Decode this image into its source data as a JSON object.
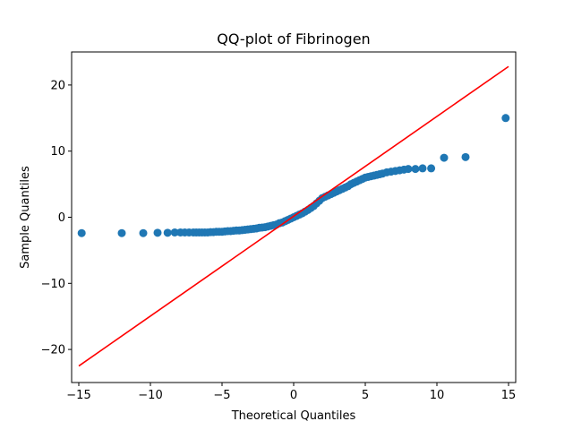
{
  "chart_data": {
    "type": "scatter",
    "title": "QQ-plot of Fibrinogen",
    "xlabel": "Theoretical Quantiles",
    "ylabel": "Sample Quantiles",
    "xlim": [
      -15.5,
      15.5
    ],
    "ylim": [
      -25,
      25
    ],
    "xticks": [
      -15,
      -10,
      -5,
      0,
      5,
      10,
      15
    ],
    "yticks": [
      -20,
      -10,
      0,
      10,
      20
    ],
    "grid": false,
    "colors": {
      "points": "#1f77b4",
      "line": "#ff0000"
    },
    "reference_line": {
      "x": [
        -15,
        15
      ],
      "y": [
        -22.5,
        22.8
      ]
    },
    "series": [
      {
        "values": [
          [
            -14.8,
            -2.4
          ],
          [
            -12.0,
            -2.4
          ],
          [
            -10.5,
            -2.4
          ],
          [
            -9.5,
            -2.35
          ],
          [
            -8.8,
            -2.35
          ],
          [
            -8.3,
            -2.3
          ],
          [
            -7.9,
            -2.3
          ],
          [
            -7.6,
            -2.3
          ],
          [
            -7.3,
            -2.3
          ],
          [
            -7.0,
            -2.3
          ],
          [
            -6.8,
            -2.3
          ],
          [
            -6.6,
            -2.3
          ],
          [
            -6.4,
            -2.3
          ],
          [
            -6.2,
            -2.3
          ],
          [
            -6.0,
            -2.3
          ],
          [
            -5.8,
            -2.25
          ],
          [
            -5.6,
            -2.25
          ],
          [
            -5.4,
            -2.2
          ],
          [
            -5.2,
            -2.2
          ],
          [
            -5.0,
            -2.2
          ],
          [
            -4.8,
            -2.15
          ],
          [
            -4.6,
            -2.1
          ],
          [
            -4.4,
            -2.1
          ],
          [
            -4.2,
            -2.05
          ],
          [
            -4.0,
            -2.0
          ],
          [
            -3.8,
            -2.0
          ],
          [
            -3.6,
            -1.95
          ],
          [
            -3.4,
            -1.9
          ],
          [
            -3.2,
            -1.85
          ],
          [
            -3.0,
            -1.8
          ],
          [
            -2.8,
            -1.75
          ],
          [
            -2.6,
            -1.7
          ],
          [
            -2.4,
            -1.6
          ],
          [
            -2.2,
            -1.55
          ],
          [
            -2.0,
            -1.5
          ],
          [
            -1.8,
            -1.4
          ],
          [
            -1.6,
            -1.3
          ],
          [
            -1.4,
            -1.2
          ],
          [
            -1.2,
            -1.1
          ],
          [
            -1.0,
            -0.9
          ],
          [
            -0.8,
            -0.8
          ],
          [
            -0.6,
            -0.6
          ],
          [
            -0.4,
            -0.4
          ],
          [
            -0.2,
            -0.2
          ],
          [
            0.0,
            0.0
          ],
          [
            0.2,
            0.2
          ],
          [
            0.4,
            0.4
          ],
          [
            0.6,
            0.6
          ],
          [
            0.8,
            0.85
          ],
          [
            1.0,
            1.1
          ],
          [
            1.2,
            1.4
          ],
          [
            1.4,
            1.7
          ],
          [
            1.6,
            2.1
          ],
          [
            1.8,
            2.5
          ],
          [
            2.0,
            2.9
          ],
          [
            2.2,
            3.1
          ],
          [
            2.4,
            3.3
          ],
          [
            2.6,
            3.5
          ],
          [
            2.8,
            3.7
          ],
          [
            3.0,
            3.9
          ],
          [
            3.2,
            4.1
          ],
          [
            3.4,
            4.3
          ],
          [
            3.6,
            4.5
          ],
          [
            3.8,
            4.7
          ],
          [
            4.0,
            5.0
          ],
          [
            4.2,
            5.2
          ],
          [
            4.4,
            5.4
          ],
          [
            4.6,
            5.6
          ],
          [
            4.8,
            5.8
          ],
          [
            5.0,
            6.0
          ],
          [
            5.2,
            6.1
          ],
          [
            5.4,
            6.2
          ],
          [
            5.6,
            6.3
          ],
          [
            5.8,
            6.4
          ],
          [
            6.0,
            6.5
          ],
          [
            6.2,
            6.6
          ],
          [
            6.5,
            6.8
          ],
          [
            6.8,
            6.9
          ],
          [
            7.1,
            7.0
          ],
          [
            7.4,
            7.1
          ],
          [
            7.7,
            7.2
          ],
          [
            8.0,
            7.3
          ],
          [
            8.5,
            7.3
          ],
          [
            9.0,
            7.4
          ],
          [
            9.6,
            7.4
          ],
          [
            10.5,
            9.0
          ],
          [
            12.0,
            9.1
          ],
          [
            14.8,
            15.0
          ]
        ]
      }
    ]
  }
}
